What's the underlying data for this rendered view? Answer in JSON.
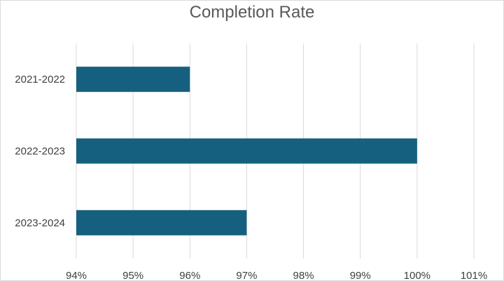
{
  "chart_data": {
    "type": "bar",
    "orientation": "horizontal",
    "title": "Completion Rate",
    "xlabel": "",
    "ylabel": "",
    "categories": [
      "2021-2022",
      "2022-2023",
      "2023-2024"
    ],
    "values": [
      96,
      100,
      97
    ],
    "xlim": [
      94,
      101
    ],
    "x_ticks": [
      "94%",
      "95%",
      "96%",
      "97%",
      "98%",
      "99%",
      "100%",
      "101%"
    ],
    "grid": "vertical",
    "legend": "none",
    "bar_color": "#16607f",
    "gridline_color": "#d9d9d9"
  }
}
